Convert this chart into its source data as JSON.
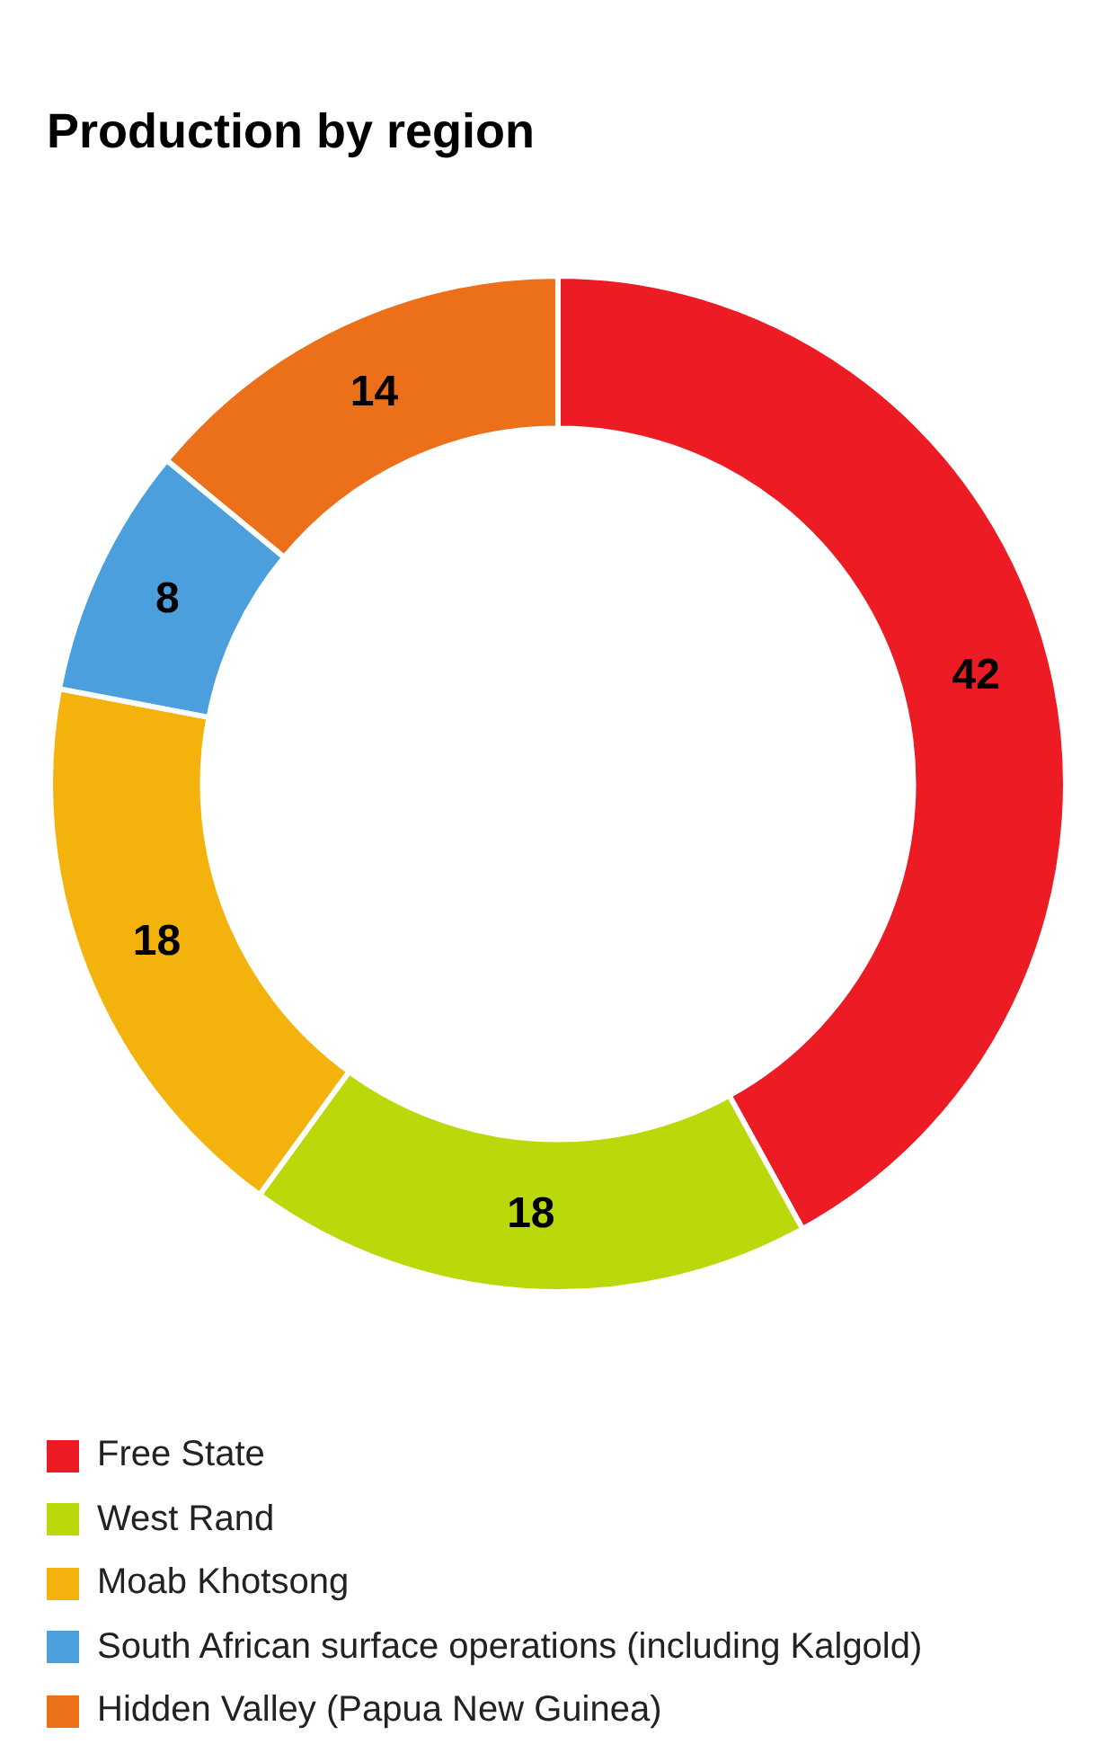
{
  "chart_data": {
    "type": "donut",
    "title": "Production by region",
    "categories": [
      "Free State",
      "West Rand",
      "Moab Khotsong",
      "South African surface operations (including Kalgold)",
      "Hidden Valley (Papua New Guinea)"
    ],
    "values": [
      42,
      18,
      18,
      8,
      14
    ],
    "colors": [
      "#ed1c24",
      "#bad80a",
      "#f4b30c",
      "#4a9fdc",
      "#ec6f1a"
    ],
    "data_labels": true,
    "legend": "bottom"
  }
}
